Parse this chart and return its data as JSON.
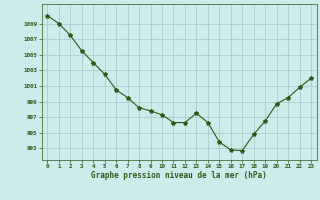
{
  "x": [
    0,
    1,
    2,
    3,
    4,
    5,
    6,
    7,
    8,
    9,
    10,
    11,
    12,
    13,
    14,
    15,
    16,
    17,
    18,
    19,
    20,
    21,
    22,
    23
  ],
  "y": [
    1010.0,
    1009.0,
    1007.5,
    1005.5,
    1004.0,
    1002.5,
    1000.5,
    999.5,
    998.2,
    997.8,
    997.3,
    996.3,
    996.3,
    997.5,
    996.3,
    993.8,
    992.8,
    992.7,
    994.8,
    996.5,
    998.7,
    999.5,
    1000.8,
    1002.0
  ],
  "line_color": "#2d5a1b",
  "marker": "*",
  "marker_size": 3,
  "bg_color": "#ceeaea",
  "grid_color": "#a0c8c8",
  "xlabel": "Graphe pression niveau de la mer (hPa)",
  "xlabel_color": "#2d5a1b",
  "tick_color": "#2d5a1b",
  "ylim": [
    991.5,
    1011.5
  ],
  "xlim": [
    -0.5,
    23.5
  ],
  "yticks": [
    993,
    995,
    997,
    999,
    1001,
    1003,
    1005,
    1007,
    1009
  ],
  "xticks": [
    0,
    1,
    2,
    3,
    4,
    5,
    6,
    7,
    8,
    9,
    10,
    11,
    12,
    13,
    14,
    15,
    16,
    17,
    18,
    19,
    20,
    21,
    22,
    23
  ]
}
